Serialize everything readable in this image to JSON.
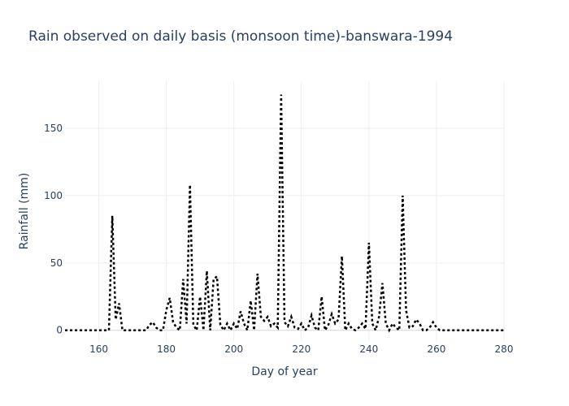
{
  "chart_data": {
    "type": "line",
    "title": "Rain observed on daily basis (monsoon time)-banswara-1994",
    "xlabel": "Day of year",
    "ylabel": "Rainfall (mm)",
    "xlim": [
      150,
      280
    ],
    "ylim": [
      -8,
      185
    ],
    "x_ticks": [
      160,
      180,
      200,
      220,
      240,
      260,
      280
    ],
    "y_ticks": [
      0,
      50,
      100,
      150
    ],
    "grid": true,
    "legend": "none",
    "line_style": "dotted",
    "line_color": "#000000",
    "series": [
      {
        "x": [
          150,
          151,
          152,
          153,
          154,
          155,
          156,
          157,
          158,
          159,
          160,
          161,
          162,
          163,
          164,
          165,
          166,
          167,
          168,
          169,
          170,
          171,
          172,
          173,
          174,
          175,
          176,
          177,
          178,
          179,
          180,
          181,
          182,
          183,
          184,
          185,
          186,
          187,
          188,
          189,
          190,
          191,
          192,
          193,
          194,
          195,
          196,
          197,
          198,
          199,
          200,
          201,
          202,
          203,
          204,
          205,
          206,
          207,
          208,
          209,
          210,
          211,
          212,
          213,
          214,
          215,
          216,
          217,
          218,
          219,
          220,
          221,
          222,
          223,
          224,
          225,
          226,
          227,
          228,
          229,
          230,
          231,
          232,
          233,
          234,
          235,
          236,
          237,
          238,
          239,
          240,
          241,
          242,
          243,
          244,
          245,
          246,
          247,
          248,
          249,
          250,
          251,
          252,
          253,
          254,
          255,
          256,
          257,
          258,
          259,
          260,
          261,
          262,
          263,
          264,
          265,
          266,
          267,
          268,
          269,
          270,
          271,
          272,
          273,
          274,
          275,
          276,
          277,
          278,
          279,
          280
        ],
        "values": [
          0,
          0,
          0,
          0,
          0,
          0,
          0,
          0,
          0,
          0,
          0,
          0,
          0,
          0,
          85,
          8,
          20,
          0,
          0,
          0,
          0,
          0,
          0,
          0,
          0,
          4,
          6,
          2,
          0,
          0,
          15,
          24,
          6,
          2,
          0,
          38,
          5,
          108,
          4,
          0,
          25,
          0,
          44,
          0,
          38,
          40,
          4,
          0,
          5,
          0,
          5,
          1,
          14,
          5,
          0,
          22,
          0,
          42,
          10,
          7,
          10,
          3,
          5,
          2,
          175,
          6,
          3,
          10,
          2,
          1,
          5,
          0,
          2,
          11,
          2,
          0,
          25,
          0,
          4,
          12,
          5,
          8,
          55,
          0,
          5,
          1,
          0,
          2,
          5,
          1,
          65,
          5,
          0,
          10,
          35,
          5,
          0,
          5,
          2,
          0,
          100,
          15,
          2,
          3,
          8,
          5,
          0,
          0,
          2,
          6,
          2,
          0,
          0,
          0,
          0,
          0,
          0,
          0,
          0,
          0,
          0,
          0,
          0,
          0,
          0,
          0,
          0,
          0,
          0,
          0,
          0
        ]
      }
    ]
  }
}
